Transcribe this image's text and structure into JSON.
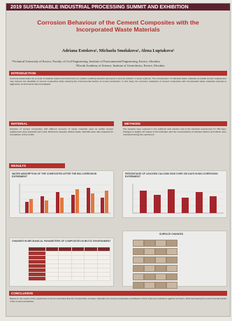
{
  "header": {
    "summit": "2019 SUSTAINABLE INDUSTRIAL PROCESSING SUMMIT AND EXHIBITION"
  },
  "title": "Corrosion Behaviour of the Cement Composites with the Incorporated Waste Materials",
  "authors": "Adriana Estokova¹, Michaela Smolakova¹, Alena Luptakova²",
  "affiliations": [
    "¹Technical University of Kosice, Faculty of Civil Engineering, Institute of Environmental Engineering, Kosice, Slovakia",
    "²Slovak Academy of Science, Institute of Geotechnics, Kosice, Slovakia"
  ],
  "sections": {
    "introduction": "INTRODUCTION",
    "material": "MATERIAL",
    "methods": "METHODS",
    "results": "RESULTS",
    "conclusion": "CONCLUSION"
  },
  "body_text": {
    "introduction": "Concrete deterioration as a result of sulphate attack and biocorrosion by sulphur-oxidizing bacteria represents a serious problem in sewer systems. The incorporation of industrial waste materials as partial cement replacement may improve the durability of cement composites while reducing the environmental burden of cement production. In this study, the corrosion resistance of cement composites with incorporated waste materials exposed to aggressive environments was investigated.",
    "material": "Samples of cement composites with different amounts of waste materials used as partial cement replacement were prepared and cured. Reference samples without waste materials were also prepared for comparison of the results.",
    "methods": "The samples were exposed to the sulphuric acid solution and to the bacterial environment for 150 days. Changes in weight, pH values of the leachates and the concentrations of leached calcium and silicon were monitored during the experiment."
  },
  "figures": {
    "water_absorption": {
      "title": "WATER ABSORPTION OF THE COMPOSITES AFTER THE BIO-CORROSION EXPERIMENT"
    },
    "leached": {
      "title": "PERCENTAGE OF LEACHED CALCIUM IONS OVER 150 DAYS IN BIO-CORROSION EXPERIMENT"
    },
    "mech_params": {
      "title": "CHANGES IN MECHANICAL PARAMETERS OF COMPOSITES IN BIOTIC ENVIRONMENT"
    },
    "surface": {
      "title": "SURFACE CHANGES"
    }
  },
  "conclusion_text": "Based on the results of the experiment it can be concluded that the incorporation of waste materials into cement composites contributes to their improved resistance against corrosion, while decreasing the environmental impact of the cement production."
}
